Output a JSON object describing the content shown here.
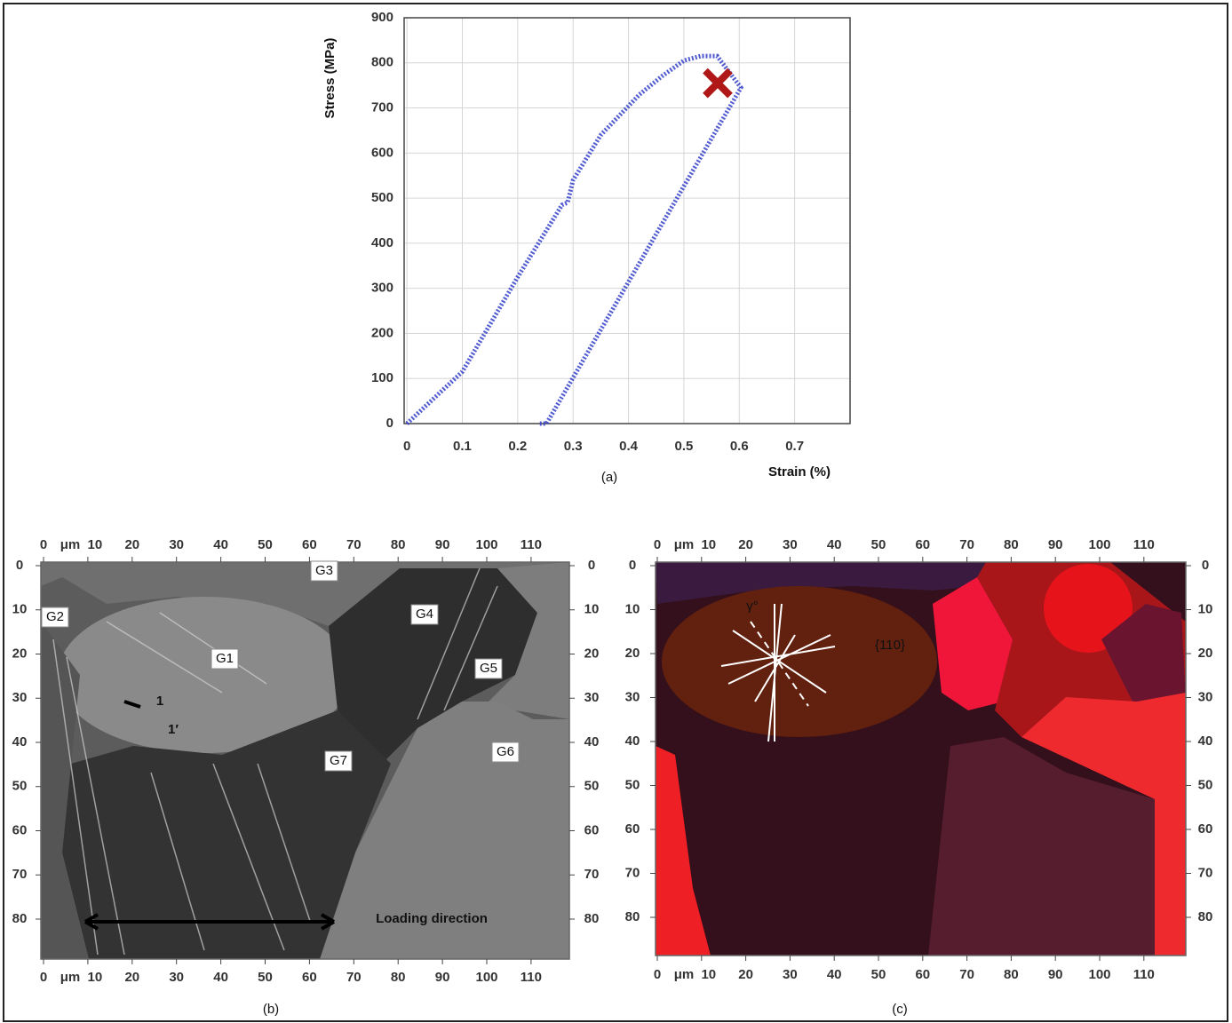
{
  "chart_data": {
    "type": "line",
    "ylabel": "Stress (MPa)",
    "xlabel": "Strain (%)",
    "caption": "(a)",
    "xlim": [
      -0.005,
      0.8
    ],
    "ylim": [
      0,
      900
    ],
    "xticks": [
      0,
      0.1,
      0.2,
      0.3,
      0.4,
      0.5,
      0.6,
      0.7
    ],
    "yticks": [
      0,
      100,
      200,
      300,
      400,
      500,
      600,
      700,
      800,
      900
    ],
    "grid": true,
    "series": [
      {
        "color": "#3340c8",
        "x": [
          0,
          0.1,
          0.2,
          0.28,
          0.29,
          0.3,
          0.35,
          0.42,
          0.46,
          0.5,
          0.53,
          0.56,
          0.603,
          0.252,
          0.24
        ],
        "values": [
          0,
          115,
          325,
          485,
          490,
          540,
          640,
          730,
          770,
          805,
          815,
          815,
          745,
          0,
          0
        ]
      }
    ],
    "failure_point": {
      "x": 0.561,
      "y": 755,
      "color": "#b01818"
    }
  },
  "panels": [
    {
      "caption": "(b)",
      "unit": "μm",
      "xticks": [
        0,
        10,
        20,
        30,
        40,
        50,
        60,
        70,
        80,
        90,
        100,
        110
      ],
      "yticks": [
        0,
        10,
        20,
        30,
        40,
        50,
        60,
        70,
        80
      ],
      "labels": [
        "G1",
        "G2",
        "G3",
        "G4",
        "G5",
        "G6",
        "G7",
        "1",
        "1′",
        "Loading direction"
      ]
    },
    {
      "caption": "(c)",
      "unit": "μm",
      "xticks": [
        0,
        10,
        20,
        30,
        40,
        50,
        60,
        70,
        80,
        90,
        100,
        110
      ],
      "yticks": [
        0,
        10,
        20,
        30,
        40,
        50,
        60,
        70,
        80
      ],
      "labels": [
        "γ°",
        "{110}"
      ]
    }
  ]
}
